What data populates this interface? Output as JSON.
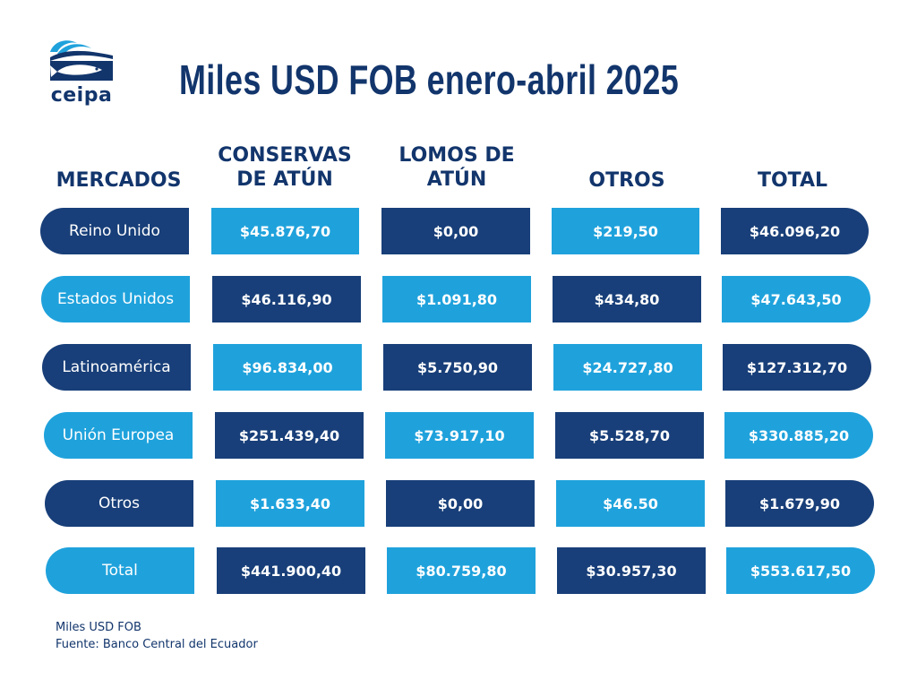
{
  "brand": {
    "logo_text": "ceipa"
  },
  "title": "Miles USD FOB enero-abril 2025",
  "headers": {
    "mercados": "MERCADOS",
    "conservas_1": "CONSERVAS",
    "conservas_2": "DE ATÚN",
    "lomos_1": "LOMOS DE",
    "lomos_2": "ATÚN",
    "otros": "OTROS",
    "total": "TOTAL"
  },
  "rows": [
    {
      "market": "Reino Unido",
      "conservas": "$45.876,70",
      "lomos": "$0,00",
      "otros": "$219,50",
      "total": "$46.096,20"
    },
    {
      "market": "Estados Unidos",
      "conservas": "$46.116,90",
      "lomos": "$1.091,80",
      "otros": "$434,80",
      "total": "$47.643,50"
    },
    {
      "market": "Latinoamérica",
      "conservas": "$96.834,00",
      "lomos": "$5.750,90",
      "otros": "$24.727,80",
      "total": "$127.312,70"
    },
    {
      "market": "Unión Europea",
      "conservas": "$251.439,40",
      "lomos": "$73.917,10",
      "otros": "$5.528,70",
      "total": "$330.885,20"
    },
    {
      "market": "Otros",
      "conservas": "$1.633,40",
      "lomos": "$0,00",
      "otros": "$46.50",
      "total": "$1.679,90"
    },
    {
      "market": "Total",
      "conservas": "$441.900,40",
      "lomos": "$80.759,80",
      "otros": "$30.957,30",
      "total": "$553.617,50"
    }
  ],
  "footer": {
    "unit": "Miles USD FOB",
    "source": "Fuente: Banco Central del Ecuador"
  },
  "colors": {
    "dark": "#183f79",
    "light": "#1fa2dc",
    "text": "#12356c"
  }
}
